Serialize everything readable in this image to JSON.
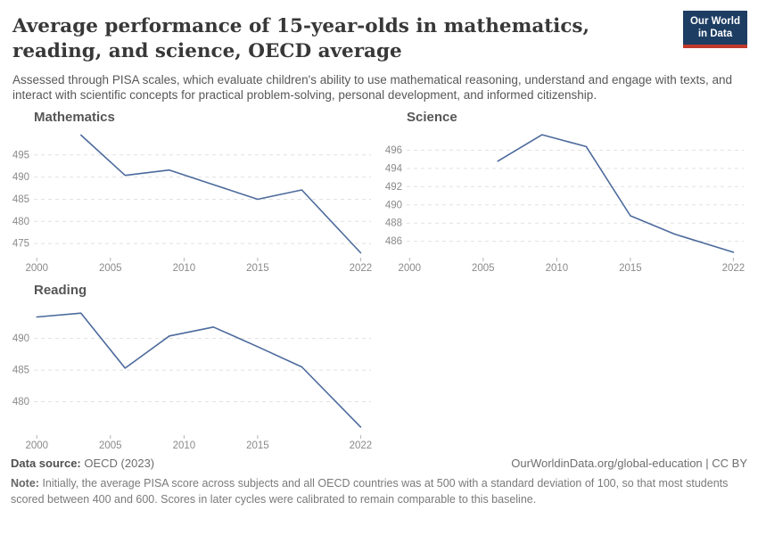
{
  "header": {
    "title": "Average performance of 15-year-olds in mathematics, reading, and science, OECD average",
    "subtitle": "Assessed through PISA scales, which evaluate children's ability to use mathematical reasoning, understand and engage with texts, and interact with scientific concepts for practical problem-solving, personal development, and informed citizenship.",
    "logo": {
      "line1": "Our World",
      "line2": "in Data",
      "bg_color": "#1d3d63",
      "accent_color": "#c0392b"
    }
  },
  "chart_data": [
    {
      "type": "line",
      "title": "Mathematics",
      "x": [
        2003,
        2006,
        2009,
        2012,
        2015,
        2018,
        2022
      ],
      "values": [
        499.5,
        490.4,
        491.6,
        488.3,
        485.0,
        487.1,
        472.9
      ],
      "xticks": [
        2000,
        2005,
        2010,
        2015,
        2022
      ],
      "yticks": [
        475,
        480,
        485,
        490,
        495
      ],
      "xlim": [
        1999.8,
        2022.7
      ],
      "ylim": [
        472.2,
        500.2
      ],
      "xlabel": "",
      "ylabel": "",
      "line_color": "#4C6A9C",
      "grid": "dashed horizontal"
    },
    {
      "type": "line",
      "title": "Science",
      "x": [
        2006,
        2009,
        2012,
        2015,
        2018,
        2022
      ],
      "values": [
        494.8,
        497.7,
        496.4,
        488.8,
        486.8,
        484.8
      ],
      "xticks": [
        2000,
        2005,
        2010,
        2015,
        2022
      ],
      "yticks": [
        486,
        488,
        490,
        492,
        494,
        496
      ],
      "xlim": [
        1999.8,
        2022.7
      ],
      "ylim": [
        484.4,
        498.0
      ],
      "xlabel": "",
      "ylabel": "",
      "line_color": "#4C6A9C",
      "grid": "dashed horizontal"
    },
    {
      "type": "line",
      "title": "Reading",
      "x": [
        2000,
        2003,
        2006,
        2009,
        2012,
        2015,
        2018,
        2022
      ],
      "values": [
        493.4,
        494.0,
        485.3,
        490.4,
        491.8,
        488.7,
        485.5,
        476.0
      ],
      "xticks": [
        2000,
        2005,
        2010,
        2015,
        2022
      ],
      "yticks": [
        480,
        485,
        490
      ],
      "xlim": [
        1999.8,
        2022.7
      ],
      "ylim": [
        475.0,
        495.3
      ],
      "xlabel": "",
      "ylabel": "",
      "line_color": "#4C6A9C",
      "grid": "dashed horizontal"
    }
  ],
  "footer": {
    "data_source_label": "Data source:",
    "data_source_value": "OECD (2023)",
    "attribution": "OurWorldinData.org/global-education | CC BY",
    "note_label": "Note:",
    "note_text": "Initially, the average PISA score across subjects and all OECD countries was at 500 with a standard deviation of 100, so that most students scored between 400 and 600. Scores in later cycles were calibrated to remain comparable to this baseline."
  }
}
